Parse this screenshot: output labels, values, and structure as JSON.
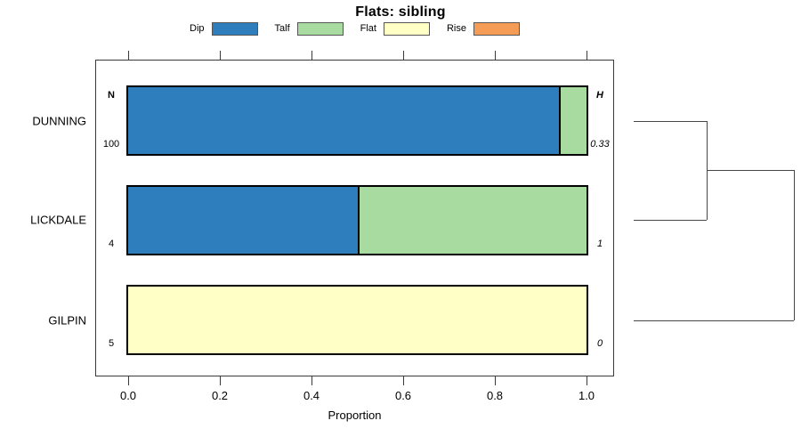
{
  "chart_data": {
    "type": "bar",
    "orientation": "horizontal-stacked",
    "title": "Flats: sibling",
    "xlabel": "Proportion",
    "categories": [
      "DUNNING",
      "LICKDALE",
      "GILPIN"
    ],
    "series": [
      {
        "name": "Dip",
        "color": "#2e7ebd",
        "values": [
          0.94,
          0.5,
          0
        ]
      },
      {
        "name": "Talf",
        "color": "#a8dba0",
        "values": [
          0.06,
          0.5,
          0
        ]
      },
      {
        "name": "Flat",
        "color": "#ffffc6",
        "values": [
          0,
          0,
          1
        ]
      },
      {
        "name": "Rise",
        "color": "#f59d57",
        "values": [
          0,
          0,
          0
        ]
      }
    ],
    "xlim": [
      0,
      1
    ],
    "xticks": [
      "0.0",
      "0.2",
      "0.4",
      "0.6",
      "0.8",
      "1.0"
    ],
    "grid": false,
    "legend_position": "top",
    "annotations": {
      "left_header": "N",
      "right_header": "H",
      "n_values": [
        "100",
        "4",
        "5"
      ],
      "h_values": [
        "0.33",
        "1",
        "0"
      ]
    },
    "dendrogram": {
      "present": true,
      "side": "right",
      "merges": [
        {
          "order": 1,
          "members": [
            "DUNNING",
            "LICKDALE"
          ]
        },
        {
          "order": 2,
          "members": [
            "DUNNING+LICKDALE",
            "GILPIN"
          ]
        }
      ]
    }
  }
}
